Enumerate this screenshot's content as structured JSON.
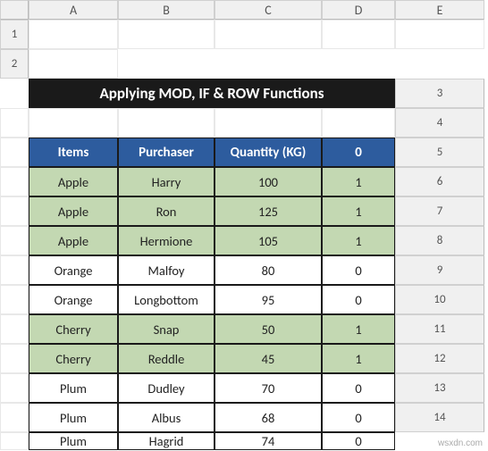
{
  "columns": [
    "A",
    "B",
    "C",
    "D",
    "E"
  ],
  "rowCount": 14,
  "title": "Applying MOD, IF & ROW Functions",
  "headers": {
    "items": "Items",
    "purchaser": "Purchaser",
    "quantity": "Quantity (KG)",
    "flag": "0"
  },
  "colors": {
    "header_bg": "#2d5c9e",
    "header_fg": "#ffffff",
    "title_bg": "#1a1a1a",
    "title_fg": "#ffffff",
    "row_green": "#c3d8b2",
    "row_white": "#ffffff",
    "grid_border": "#1a1a1a"
  },
  "rows": [
    {
      "items": "Apple",
      "purchaser": "Harry",
      "quantity": "100",
      "flag": "1",
      "shade": "green"
    },
    {
      "items": "Apple",
      "purchaser": "Ron",
      "quantity": "125",
      "flag": "1",
      "shade": "green"
    },
    {
      "items": "Apple",
      "purchaser": "Hermione",
      "quantity": "105",
      "flag": "1",
      "shade": "green"
    },
    {
      "items": "Orange",
      "purchaser": "Malfoy",
      "quantity": "80",
      "flag": "0",
      "shade": "white"
    },
    {
      "items": "Orange",
      "purchaser": "Longbottom",
      "quantity": "95",
      "flag": "0",
      "shade": "white"
    },
    {
      "items": "Cherry",
      "purchaser": "Snap",
      "quantity": "50",
      "flag": "1",
      "shade": "green"
    },
    {
      "items": "Cherry",
      "purchaser": "Reddle",
      "quantity": "45",
      "flag": "1",
      "shade": "green"
    },
    {
      "items": "Plum",
      "purchaser": "Dudley",
      "quantity": "70",
      "flag": "0",
      "shade": "white"
    },
    {
      "items": "Plum",
      "purchaser": "Albus",
      "quantity": "68",
      "flag": "0",
      "shade": "white"
    },
    {
      "items": "Plum",
      "purchaser": "Hagrid",
      "quantity": "74",
      "flag": "0",
      "shade": "white"
    }
  ],
  "watermark": "wsxdn.com"
}
